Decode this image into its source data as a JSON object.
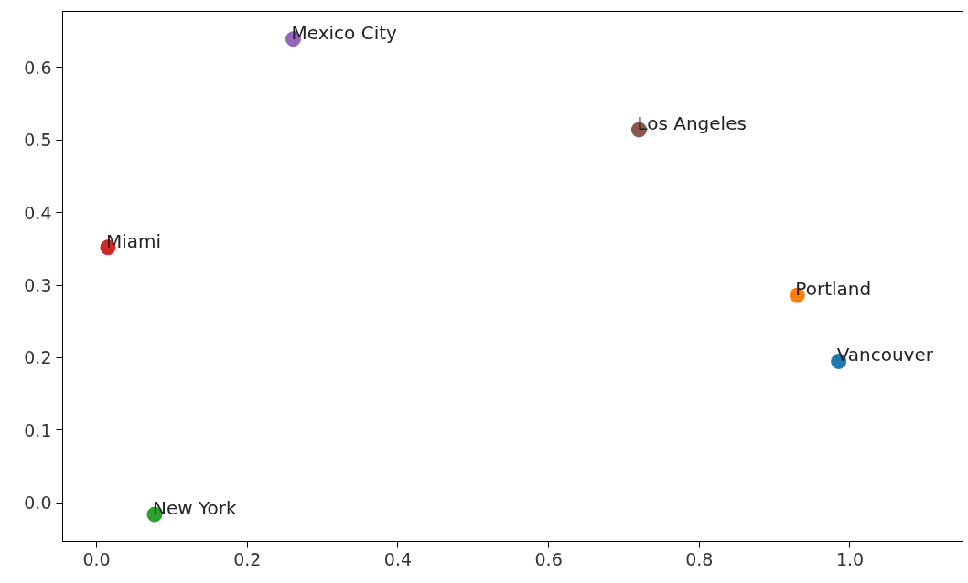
{
  "chart_data": {
    "type": "scatter",
    "x": [
      0.985,
      0.93,
      0.077,
      0.015,
      0.261,
      0.72
    ],
    "values": [
      0.195,
      0.286,
      -0.016,
      0.352,
      0.639,
      0.514
    ],
    "colors": [
      "#1f77b4",
      "#ff7f0e",
      "#2ca02c",
      "#d62728",
      "#9467bd",
      "#8c564b"
    ],
    "annotations": [
      {
        "text": "Vancouver",
        "x": 0.985,
        "y": 0.195
      },
      {
        "text": "Portland",
        "x": 0.93,
        "y": 0.286
      },
      {
        "text": "New York",
        "x": 0.077,
        "y": -0.016
      },
      {
        "text": "Miami",
        "x": 0.015,
        "y": 0.352
      },
      {
        "text": "Mexico City",
        "x": 0.261,
        "y": 0.639
      },
      {
        "text": "Los Angeles",
        "x": 0.72,
        "y": 0.514
      }
    ],
    "xlim": [
      -0.045,
      1.15
    ],
    "ylim": [
      -0.053,
      0.677
    ],
    "xticks": [
      {
        "value": 0,
        "label": "0.0"
      },
      {
        "value": 0.2,
        "label": "0.2"
      },
      {
        "value": 0.4,
        "label": "0.4"
      },
      {
        "value": 0.6,
        "label": "0.6"
      },
      {
        "value": 0.8,
        "label": "0.8"
      },
      {
        "value": 1,
        "label": "1.0"
      }
    ],
    "yticks": [
      {
        "value": 0,
        "label": "0.0"
      },
      {
        "value": 0.1,
        "label": "0.1"
      },
      {
        "value": 0.2,
        "label": "0.2"
      },
      {
        "value": 0.3,
        "label": "0.3"
      },
      {
        "value": 0.4,
        "label": "0.4"
      },
      {
        "value": 0.5,
        "label": "0.5"
      },
      {
        "value": 0.6,
        "label": "0.6"
      }
    ],
    "marker": "circle",
    "grid": false
  }
}
